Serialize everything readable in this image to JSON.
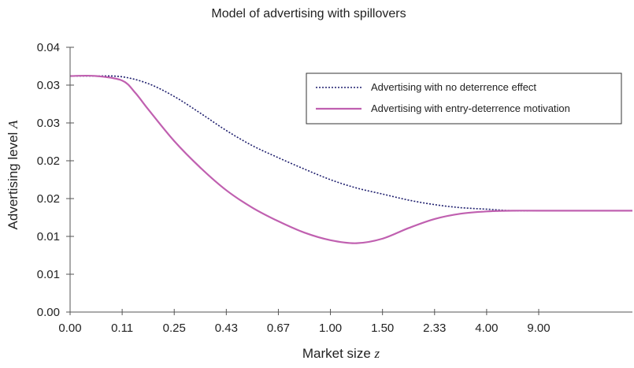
{
  "chart_data": {
    "type": "line",
    "title": "Model of advertising with spillovers",
    "xlabel": "Market size",
    "xlabel_var": "z",
    "ylabel": "Advertising level",
    "ylabel_var": "A",
    "x_tick_labels": [
      "0.00",
      "0.11",
      "0.25",
      "0.43",
      "0.67",
      "1.00",
      "1.50",
      "2.33",
      "4.00",
      "9.00"
    ],
    "y_tick_labels": [
      "0.00",
      "0.01",
      "0.01",
      "0.02",
      "0.02",
      "0.03",
      "0.03",
      "0.04"
    ],
    "ylim": [
      0,
      0.035
    ],
    "x_index_range": [
      0,
      10.8
    ],
    "grid": false,
    "legend_position": "top-right",
    "series": [
      {
        "name": "Advertising with no deterrence effect",
        "style": "dotted",
        "color": "#1f1f6e",
        "points": [
          [
            0,
            0.0312
          ],
          [
            0.5,
            0.0312
          ],
          [
            1.0,
            0.0311
          ],
          [
            1.5,
            0.0302
          ],
          [
            2.0,
            0.0285
          ],
          [
            2.5,
            0.0263
          ],
          [
            3.0,
            0.024
          ],
          [
            3.5,
            0.022
          ],
          [
            4.0,
            0.0204
          ],
          [
            4.5,
            0.0189
          ],
          [
            5.0,
            0.0175
          ],
          [
            5.5,
            0.0164
          ],
          [
            6.0,
            0.0156
          ],
          [
            6.5,
            0.0148
          ],
          [
            7.0,
            0.0142
          ],
          [
            7.5,
            0.0138
          ],
          [
            8.0,
            0.0136
          ],
          [
            8.5,
            0.0134
          ],
          [
            9.0,
            0.0134
          ],
          [
            10.8,
            0.0134
          ]
        ]
      },
      {
        "name": "Advertising with entry-deterrence motivation",
        "style": "solid",
        "color": "#c060b0",
        "points": [
          [
            0,
            0.0312
          ],
          [
            0.5,
            0.0312
          ],
          [
            1.0,
            0.0306
          ],
          [
            1.25,
            0.029
          ],
          [
            1.5,
            0.0268
          ],
          [
            2.0,
            0.0226
          ],
          [
            2.5,
            0.0191
          ],
          [
            3.0,
            0.0161
          ],
          [
            3.5,
            0.0138
          ],
          [
            4.0,
            0.012
          ],
          [
            4.5,
            0.0105
          ],
          [
            5.0,
            0.0095
          ],
          [
            5.5,
            0.0091
          ],
          [
            6.0,
            0.0097
          ],
          [
            6.5,
            0.0111
          ],
          [
            7.0,
            0.0123
          ],
          [
            7.5,
            0.013
          ],
          [
            8.0,
            0.0133
          ],
          [
            8.5,
            0.0134
          ],
          [
            9.0,
            0.0134
          ],
          [
            10.8,
            0.0134
          ]
        ]
      }
    ]
  }
}
